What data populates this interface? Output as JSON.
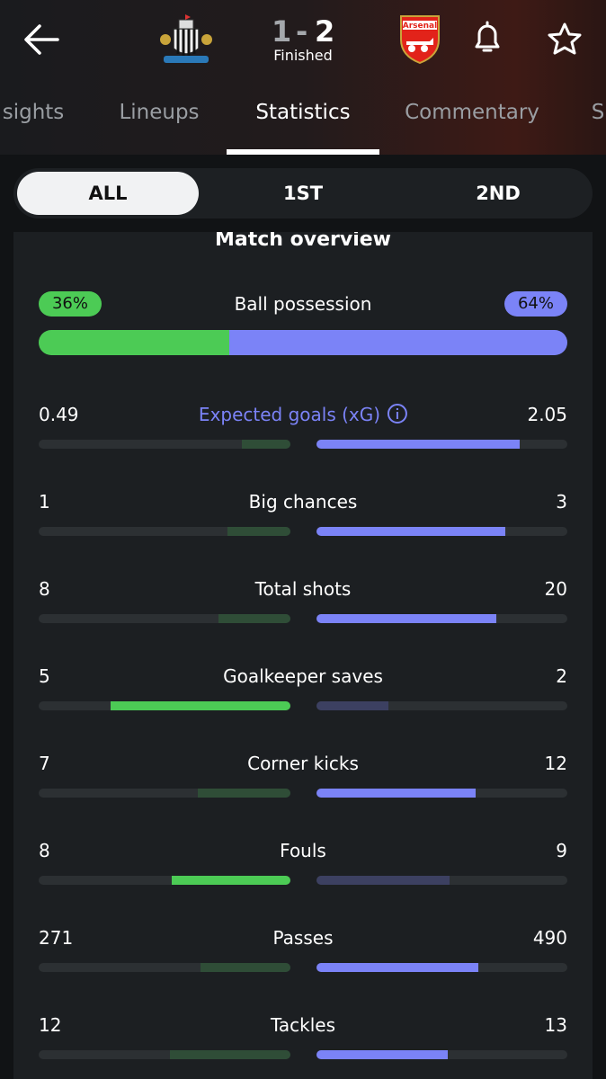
{
  "header": {
    "score": {
      "home": 1,
      "separator": "-",
      "away": 2
    },
    "status": "Finished"
  },
  "tabs": {
    "items": [
      "sights",
      "Lineups",
      "Statistics",
      "Commentary",
      "S"
    ],
    "active": 2
  },
  "periods": {
    "items": [
      "ALL",
      "1ST",
      "2ND"
    ],
    "active": 0
  },
  "overview": {
    "title": "Match overview",
    "possession": {
      "label": "Ball possession",
      "home": {
        "value": 36,
        "label": "36%"
      },
      "away": {
        "value": 64,
        "label": "64%"
      }
    },
    "stats": [
      {
        "label": "Expected goals (xG)",
        "home": 0.49,
        "away": 2.05,
        "better": "away",
        "info": true
      },
      {
        "label": "Big chances",
        "home": 1,
        "away": 3,
        "better": "away"
      },
      {
        "label": "Total shots",
        "home": 8,
        "away": 20,
        "better": "away"
      },
      {
        "label": "Goalkeeper saves",
        "home": 5,
        "away": 2,
        "better": "home"
      },
      {
        "label": "Corner kicks",
        "home": 7,
        "away": 12,
        "better": "away"
      },
      {
        "label": "Fouls",
        "home": 8,
        "away": 9,
        "better": "home"
      },
      {
        "label": "Passes",
        "home": 271,
        "away": 490,
        "better": "away"
      },
      {
        "label": "Tackles",
        "home": 12,
        "away": 13,
        "better": "away"
      }
    ]
  },
  "colors": {
    "home": "#4ccb55",
    "home_dim": "#2f4d37",
    "away": "#7b83f7",
    "away_dim": "#3c4061",
    "track": "#2c3033"
  }
}
